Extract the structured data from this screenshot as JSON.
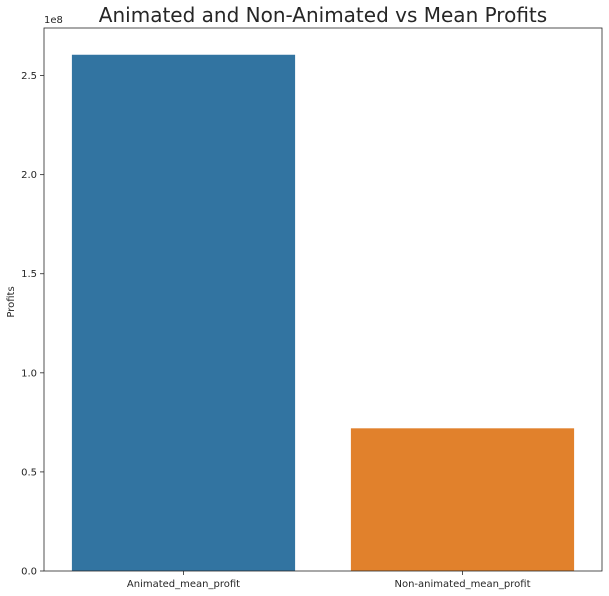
{
  "chart_data": {
    "type": "bar",
    "title": "Animated and Non-Animated vs Mean Profits",
    "xlabel": "",
    "ylabel": "Profits",
    "y_offset_label": "1e8",
    "categories": [
      "Animated_mean_profit",
      "Non-animated_mean_profit"
    ],
    "values": [
      2.605,
      0.72
    ],
    "value_scale": 100000000,
    "ylim": [
      0,
      2.74
    ],
    "yticks": [
      0.0,
      0.5,
      1.0,
      1.5,
      2.0,
      2.5
    ],
    "ytick_labels": [
      "0.0",
      "0.5",
      "1.0",
      "1.5",
      "2.0",
      "2.5"
    ],
    "colors": [
      "#3274a1",
      "#e1812c"
    ],
    "grid": false,
    "legend": "none"
  }
}
